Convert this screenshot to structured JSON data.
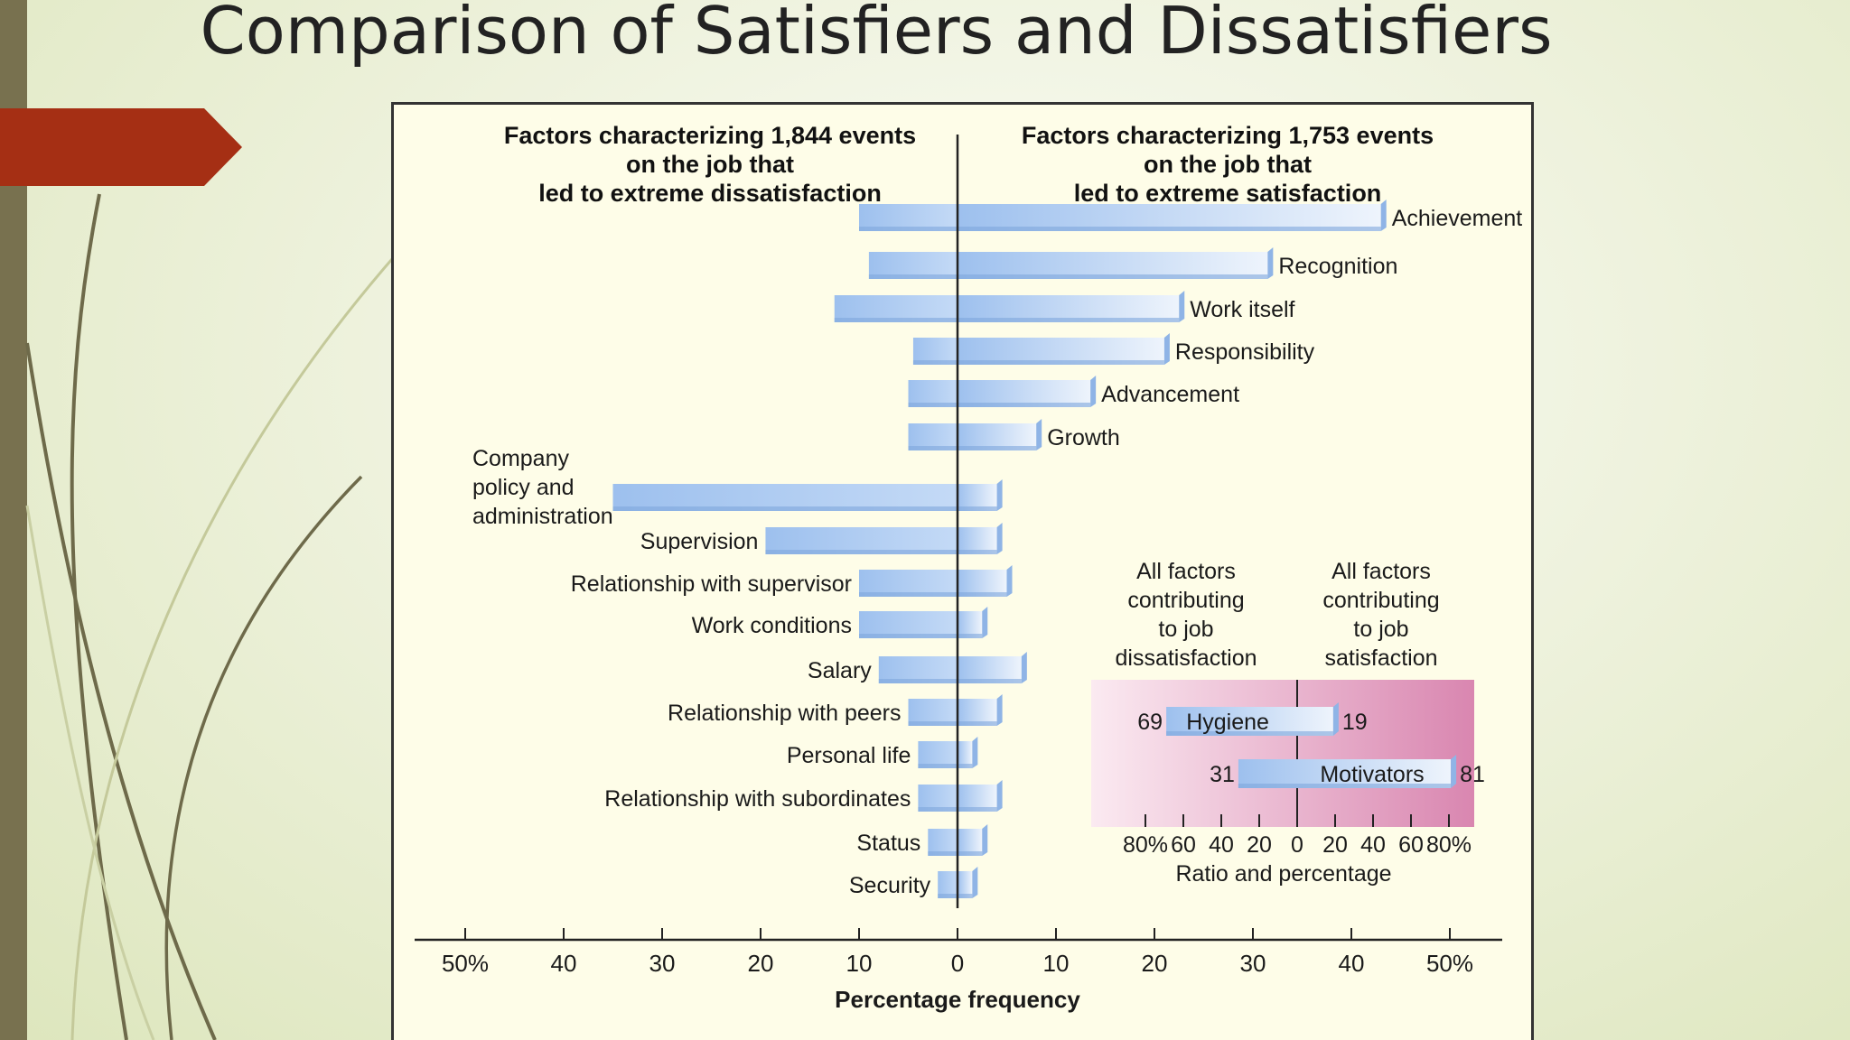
{
  "title": "Comparison of Satisfiers and Dissatisfiers",
  "colors": {
    "accent": "#a52f14",
    "bar_dark": "#9dc0ee",
    "bar_light": "#eef4fc",
    "inset_bg": "#e8a9c6"
  },
  "chart_data": {
    "type": "bar",
    "orientation": "horizontal-diverging",
    "left_header": [
      "Factors characterizing 1,844 events",
      "on the job that",
      "led to extreme dissatisfaction"
    ],
    "right_header": [
      "Factors characterizing 1,753 events",
      "on the job that",
      "led to extreme satisfaction"
    ],
    "xlabel": "Percentage frequency",
    "xlim": [
      -50,
      50
    ],
    "tick_labels": [
      "50%",
      "40",
      "30",
      "20",
      "10",
      "0",
      "10",
      "20",
      "30",
      "40",
      "50%"
    ],
    "factors": [
      {
        "name": [
          "Achievement"
        ],
        "dissatisfaction": 10,
        "satisfaction": 43,
        "label_side": "right"
      },
      {
        "name": [
          "Recognition"
        ],
        "dissatisfaction": 9,
        "satisfaction": 31.5,
        "label_side": "right"
      },
      {
        "name": [
          "Work itself"
        ],
        "dissatisfaction": 12.5,
        "satisfaction": 22.5,
        "label_side": "right"
      },
      {
        "name": [
          "Responsibility"
        ],
        "dissatisfaction": 4.5,
        "satisfaction": 21,
        "label_side": "right"
      },
      {
        "name": [
          "Advancement"
        ],
        "dissatisfaction": 5,
        "satisfaction": 13.5,
        "label_side": "right"
      },
      {
        "name": [
          "Growth"
        ],
        "dissatisfaction": 5,
        "satisfaction": 8,
        "label_side": "right"
      },
      {
        "name": [
          "Company",
          "policy and",
          "administration"
        ],
        "dissatisfaction": 35,
        "satisfaction": 4,
        "label_side": "left"
      },
      {
        "name": [
          "Supervision"
        ],
        "dissatisfaction": 19.5,
        "satisfaction": 4,
        "label_side": "left"
      },
      {
        "name": [
          "Relationship with supervisor"
        ],
        "dissatisfaction": 10,
        "satisfaction": 5,
        "label_side": "left"
      },
      {
        "name": [
          "Work conditions"
        ],
        "dissatisfaction": 10,
        "satisfaction": 2.5,
        "label_side": "left"
      },
      {
        "name": [
          "Salary"
        ],
        "dissatisfaction": 8,
        "satisfaction": 6.5,
        "label_side": "left"
      },
      {
        "name": [
          "Relationship with peers"
        ],
        "dissatisfaction": 5,
        "satisfaction": 4,
        "label_side": "left"
      },
      {
        "name": [
          "Personal life"
        ],
        "dissatisfaction": 4,
        "satisfaction": 1.5,
        "label_side": "left"
      },
      {
        "name": [
          "Relationship with subordinates"
        ],
        "dissatisfaction": 4,
        "satisfaction": 4,
        "label_side": "left"
      },
      {
        "name": [
          "Status"
        ],
        "dissatisfaction": 3,
        "satisfaction": 2.5,
        "label_side": "left"
      },
      {
        "name": [
          "Security"
        ],
        "dissatisfaction": 2,
        "satisfaction": 1.5,
        "label_side": "left"
      }
    ],
    "inset": {
      "left_header": [
        "All factors",
        "contributing",
        "to job",
        "dissatisfaction"
      ],
      "right_header": [
        "All factors",
        "contributing",
        "to job",
        "satisfaction"
      ],
      "xlabel": "Ratio and percentage",
      "xlim": [
        -80,
        80
      ],
      "tick_labels": [
        "80%",
        "60",
        "40",
        "20",
        "0",
        "20",
        "40",
        "60",
        "80%"
      ],
      "series": [
        {
          "name": "Hygiene",
          "dissatisfaction": 69,
          "satisfaction": 19,
          "left_value_label": "69",
          "right_value_label": "19"
        },
        {
          "name": "Motivators",
          "dissatisfaction": 31,
          "satisfaction": 81,
          "left_value_label": "31",
          "right_value_label": "81"
        }
      ]
    }
  }
}
